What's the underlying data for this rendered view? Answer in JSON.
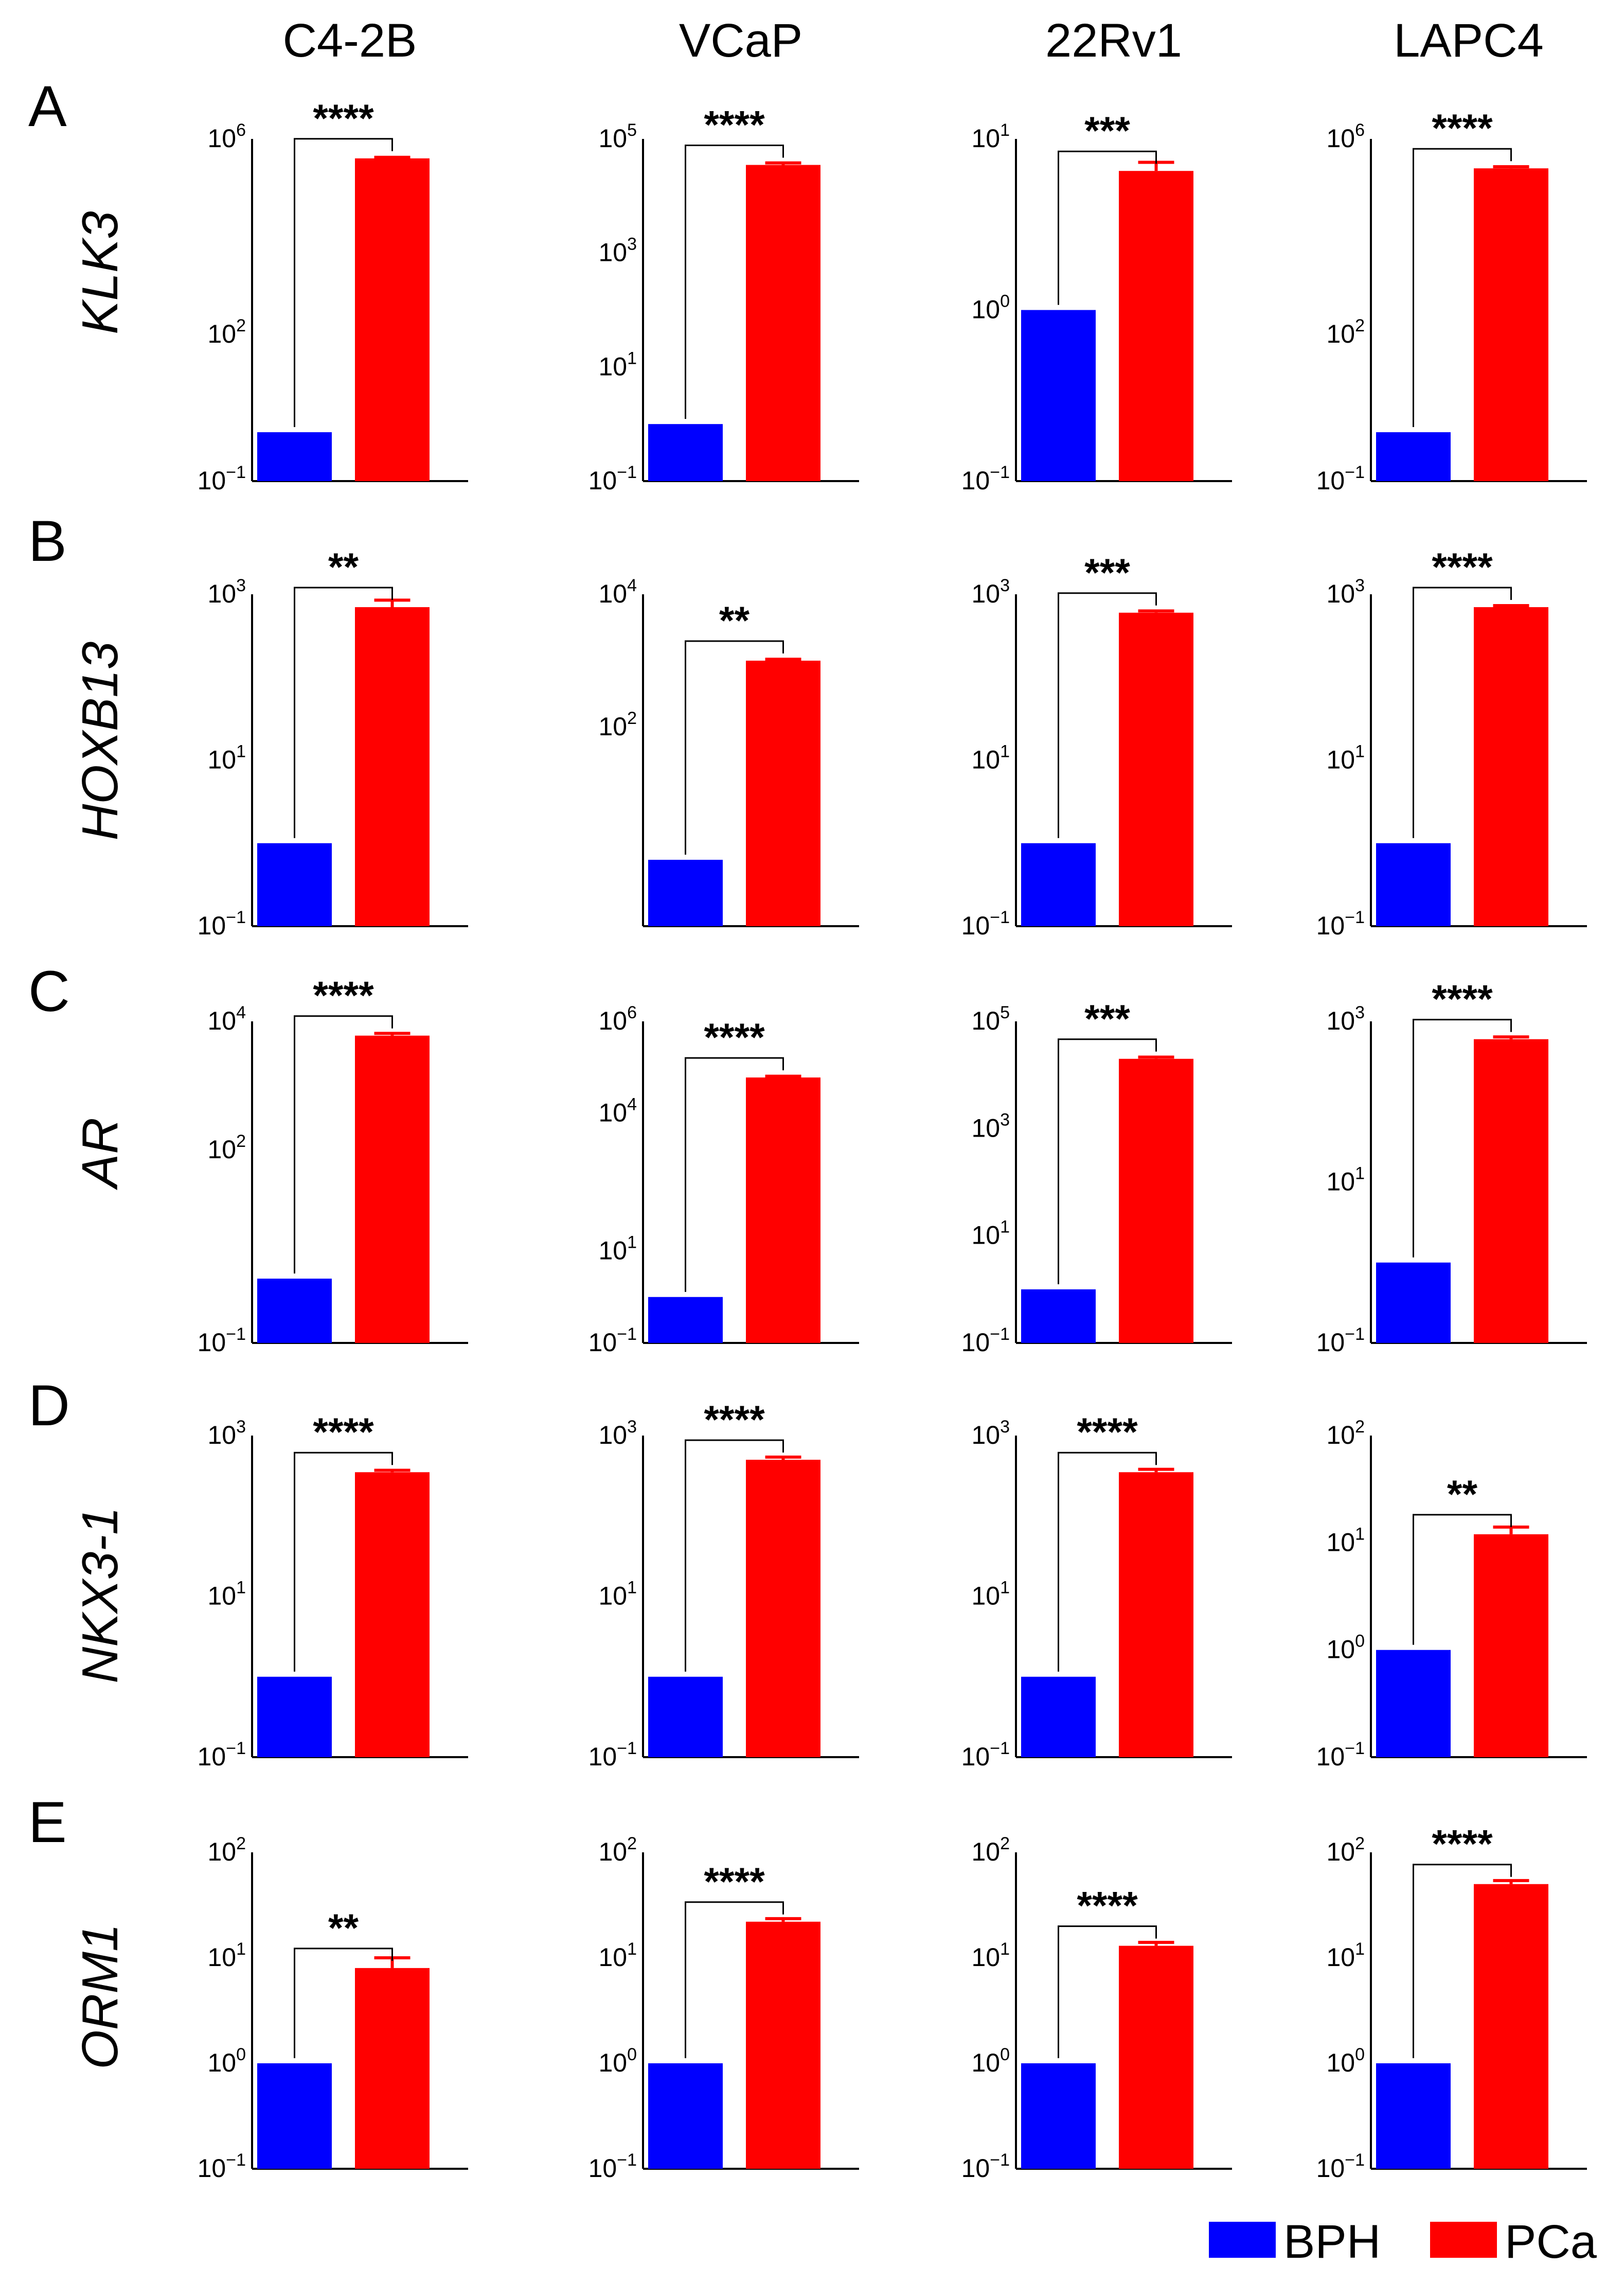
{
  "colors": {
    "BPH": "#0000ff",
    "PCa": "#ff0000",
    "axis": "#000000"
  },
  "column_titles": [
    "C4-2B",
    "VCaP",
    "22Rv1",
    "LAPC4"
  ],
  "row_letters": [
    "A",
    "B",
    "C",
    "D",
    "E"
  ],
  "genes": [
    "KLK3",
    "HOXB13",
    "AR",
    "NKX3-1",
    "ORM1"
  ],
  "legend": [
    {
      "key": "BPH",
      "label": "BPH"
    },
    {
      "key": "PCa",
      "label": "PCa"
    }
  ],
  "chart_data": [
    {
      "type": "bar",
      "scale": "log",
      "row": "A",
      "gene": "KLK3",
      "cell_line": "C4-2B",
      "categories": [
        "BPH",
        "PCa"
      ],
      "values": [
        1,
        400000
      ],
      "error": [
        0,
        20000
      ],
      "yticks": [
        -1,
        2,
        6
      ],
      "ylim_exp": [
        -1,
        6
      ],
      "significance": "****"
    },
    {
      "type": "bar",
      "scale": "log",
      "row": "A",
      "gene": "KLK3",
      "cell_line": "VCaP",
      "categories": [
        "BPH",
        "PCa"
      ],
      "values": [
        1,
        35000
      ],
      "error": [
        0,
        3000
      ],
      "yticks": [
        -1,
        1,
        3,
        5
      ],
      "ylim_exp": [
        -1,
        5
      ],
      "significance": "****"
    },
    {
      "type": "bar",
      "scale": "log",
      "row": "A",
      "gene": "KLK3",
      "cell_line": "22Rv1",
      "categories": [
        "BPH",
        "PCa"
      ],
      "values": [
        1,
        6.5
      ],
      "error": [
        0,
        0.8
      ],
      "yticks": [
        -1,
        0,
        1
      ],
      "ylim_exp": [
        -1,
        1
      ],
      "significance": "***"
    },
    {
      "type": "bar",
      "scale": "log",
      "row": "A",
      "gene": "KLK3",
      "cell_line": "LAPC4",
      "categories": [
        "BPH",
        "PCa"
      ],
      "values": [
        1,
        250000
      ],
      "error": [
        0,
        20000
      ],
      "yticks": [
        -1,
        2,
        6
      ],
      "ylim_exp": [
        -1,
        6
      ],
      "significance": "****"
    },
    {
      "type": "bar",
      "scale": "log",
      "row": "B",
      "gene": "HOXB13",
      "cell_line": "C4-2B",
      "categories": [
        "BPH",
        "PCa"
      ],
      "values": [
        1,
        700
      ],
      "error": [
        0,
        150
      ],
      "yticks": [
        -1,
        1,
        3
      ],
      "ylim_exp": [
        -1,
        3
      ],
      "significance": "**"
    },
    {
      "type": "bar",
      "scale": "log",
      "row": "B",
      "gene": "HOXB13",
      "cell_line": "VCaP",
      "categories": [
        "BPH",
        "PCa"
      ],
      "values": [
        1,
        1000
      ],
      "error": [
        0,
        50
      ],
      "yticks": [
        2,
        4
      ],
      "ylim_exp": [
        -1,
        4
      ],
      "significance": "**"
    },
    {
      "type": "bar",
      "scale": "log",
      "row": "B",
      "gene": "HOXB13",
      "cell_line": "22Rv1",
      "categories": [
        "BPH",
        "PCa"
      ],
      "values": [
        1,
        600
      ],
      "error": [
        0,
        30
      ],
      "yticks": [
        -1,
        1,
        3
      ],
      "ylim_exp": [
        -1,
        3
      ],
      "significance": "***"
    },
    {
      "type": "bar",
      "scale": "log",
      "row": "B",
      "gene": "HOXB13",
      "cell_line": "LAPC4",
      "categories": [
        "BPH",
        "PCa"
      ],
      "values": [
        1,
        700
      ],
      "error": [
        0,
        30
      ],
      "yticks": [
        -1,
        1,
        3
      ],
      "ylim_exp": [
        -1,
        3
      ],
      "significance": "****"
    },
    {
      "type": "bar",
      "scale": "log",
      "row": "C",
      "gene": "AR",
      "cell_line": "C4-2B",
      "categories": [
        "BPH",
        "PCa"
      ],
      "values": [
        1,
        6000
      ],
      "error": [
        0,
        500
      ],
      "yticks": [
        -1,
        2,
        4
      ],
      "ylim_exp": [
        -1,
        4
      ],
      "significance": "****"
    },
    {
      "type": "bar",
      "scale": "log",
      "row": "C",
      "gene": "AR",
      "cell_line": "VCaP",
      "categories": [
        "BPH",
        "PCa"
      ],
      "values": [
        1,
        60000
      ],
      "error": [
        0,
        4000
      ],
      "yticks": [
        -1,
        1,
        4,
        6
      ],
      "ylim_exp": [
        -1,
        6
      ],
      "significance": "****"
    },
    {
      "type": "bar",
      "scale": "log",
      "row": "C",
      "gene": "AR",
      "cell_line": "22Rv1",
      "categories": [
        "BPH",
        "PCa"
      ],
      "values": [
        1,
        20000
      ],
      "error": [
        0,
        1500
      ],
      "yticks": [
        -1,
        1,
        3,
        5
      ],
      "ylim_exp": [
        -1,
        5
      ],
      "significance": "***"
    },
    {
      "type": "bar",
      "scale": "log",
      "row": "C",
      "gene": "AR",
      "cell_line": "LAPC4",
      "categories": [
        "BPH",
        "PCa"
      ],
      "values": [
        1,
        600
      ],
      "error": [
        0,
        40
      ],
      "yticks": [
        -1,
        1,
        3
      ],
      "ylim_exp": [
        -1,
        3
      ],
      "significance": "****"
    },
    {
      "type": "bar",
      "scale": "log",
      "row": "D",
      "gene": "NKX3-1",
      "cell_line": "C4-2B",
      "categories": [
        "BPH",
        "PCa"
      ],
      "values": [
        1,
        350
      ],
      "error": [
        0,
        20
      ],
      "yticks": [
        -1,
        1,
        3
      ],
      "ylim_exp": [
        -1,
        3
      ],
      "significance": "****"
    },
    {
      "type": "bar",
      "scale": "log",
      "row": "D",
      "gene": "NKX3-1",
      "cell_line": "VCaP",
      "categories": [
        "BPH",
        "PCa"
      ],
      "values": [
        1,
        500
      ],
      "error": [
        0,
        40
      ],
      "yticks": [
        -1,
        1,
        3
      ],
      "ylim_exp": [
        -1,
        3
      ],
      "significance": "****"
    },
    {
      "type": "bar",
      "scale": "log",
      "row": "D",
      "gene": "NKX3-1",
      "cell_line": "22Rv1",
      "categories": [
        "BPH",
        "PCa"
      ],
      "values": [
        1,
        350
      ],
      "error": [
        0,
        30
      ],
      "yticks": [
        -1,
        1,
        3
      ],
      "ylim_exp": [
        -1,
        3
      ],
      "significance": "****"
    },
    {
      "type": "bar",
      "scale": "log",
      "row": "D",
      "gene": "NKX3-1",
      "cell_line": "LAPC4",
      "categories": [
        "BPH",
        "PCa"
      ],
      "values": [
        1,
        12
      ],
      "error": [
        0,
        2
      ],
      "yticks": [
        -1,
        0,
        1,
        2
      ],
      "ylim_exp": [
        -1,
        2
      ],
      "significance": "**"
    },
    {
      "type": "bar",
      "scale": "log",
      "row": "E",
      "gene": "ORM1",
      "cell_line": "C4-2B",
      "categories": [
        "BPH",
        "PCa"
      ],
      "values": [
        1,
        8
      ],
      "error": [
        0,
        2
      ],
      "yticks": [
        -1,
        0,
        1,
        2
      ],
      "ylim_exp": [
        -1,
        2
      ],
      "significance": "**"
    },
    {
      "type": "bar",
      "scale": "log",
      "row": "E",
      "gene": "ORM1",
      "cell_line": "VCaP",
      "categories": [
        "BPH",
        "PCa"
      ],
      "values": [
        1,
        22
      ],
      "error": [
        0,
        1.5
      ],
      "yticks": [
        -1,
        0,
        1,
        2
      ],
      "ylim_exp": [
        -1,
        2
      ],
      "significance": "****"
    },
    {
      "type": "bar",
      "scale": "log",
      "row": "E",
      "gene": "ORM1",
      "cell_line": "22Rv1",
      "categories": [
        "BPH",
        "PCa"
      ],
      "values": [
        1,
        13
      ],
      "error": [
        0,
        1
      ],
      "yticks": [
        -1,
        0,
        1,
        2
      ],
      "ylim_exp": [
        -1,
        2
      ],
      "significance": "****"
    },
    {
      "type": "bar",
      "scale": "log",
      "row": "E",
      "gene": "ORM1",
      "cell_line": "LAPC4",
      "categories": [
        "BPH",
        "PCa"
      ],
      "values": [
        1,
        50
      ],
      "error": [
        0,
        4
      ],
      "yticks": [
        -1,
        0,
        1,
        2
      ],
      "ylim_exp": [
        -1,
        2
      ],
      "significance": "****"
    }
  ]
}
